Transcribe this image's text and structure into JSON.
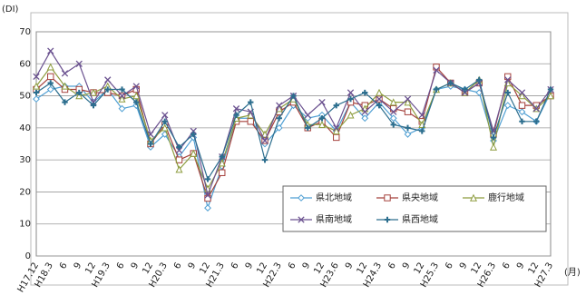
{
  "chart_data": {
    "type": "line",
    "y_label": "(DI)",
    "x_label": "(月)",
    "categories": [
      "H17.12",
      "H18.3",
      "6",
      "9",
      "12",
      "H19.3",
      "6",
      "9",
      "12",
      "H20.3",
      "6",
      "9",
      "12",
      "H21.3",
      "6",
      "9",
      "12",
      "H22.3",
      "6",
      "9",
      "12",
      "H23.6",
      "9",
      "12",
      "H24.3",
      "6",
      "9",
      "12",
      "H25.3",
      "6",
      "9",
      "12",
      "H26.3",
      "6",
      "9",
      "12",
      "H27.3"
    ],
    "ylim": [
      0,
      70
    ],
    "yticks": [
      0,
      10,
      20,
      30,
      40,
      50,
      60,
      70
    ],
    "grid": true,
    "series": [
      {
        "name": "県北地域",
        "color": "#4f9fd3",
        "marker": "diamond",
        "values": [
          49,
          52,
          53,
          53,
          48,
          52,
          46,
          47,
          34,
          38,
          31,
          37,
          15,
          28,
          43,
          43,
          35,
          40,
          47,
          43,
          44,
          39,
          48,
          43,
          48,
          43,
          38,
          40,
          52,
          53,
          52,
          51,
          36,
          47,
          45,
          42,
          51
        ]
      },
      {
        "name": "県央地域",
        "color": "#a5413c",
        "marker": "square",
        "values": [
          52,
          56,
          52,
          52,
          51,
          51,
          50,
          52,
          35,
          41,
          30,
          32,
          18,
          26,
          42,
          42,
          36,
          45,
          48,
          40,
          42,
          37,
          48,
          47,
          49,
          46,
          45,
          42,
          59,
          54,
          51,
          54,
          38,
          56,
          47,
          47,
          50
        ]
      },
      {
        "name": "鹿行地域",
        "color": "#8d9c3e",
        "marker": "triangle",
        "values": [
          53,
          59,
          53,
          50,
          51,
          53,
          49,
          50,
          36,
          40,
          27,
          32,
          21,
          29,
          43,
          44,
          38,
          46,
          49,
          41,
          41,
          39,
          44,
          46,
          51,
          48,
          48,
          41,
          52,
          54,
          51,
          55,
          34,
          54,
          50,
          46,
          50
        ]
      },
      {
        "name": "県南地域",
        "color": "#6b5290",
        "marker": "x",
        "values": [
          56,
          64,
          57,
          60,
          48,
          55,
          50,
          53,
          38,
          44,
          33,
          39,
          19,
          31,
          46,
          45,
          36,
          47,
          50,
          44,
          48,
          40,
          51,
          45,
          49,
          45,
          49,
          44,
          58,
          54,
          51,
          54,
          39,
          55,
          51,
          46,
          52
        ]
      },
      {
        "name": "県西地域",
        "color": "#2c6e8e",
        "marker": "plus",
        "values": [
          51,
          54,
          48,
          51,
          47,
          52,
          52,
          48,
          35,
          42,
          34,
          38,
          24,
          31,
          44,
          48,
          30,
          43,
          50,
          40,
          43,
          47,
          49,
          51,
          47,
          41,
          40,
          39,
          52,
          54,
          52,
          55,
          37,
          51,
          42,
          42,
          52
        ]
      }
    ]
  }
}
